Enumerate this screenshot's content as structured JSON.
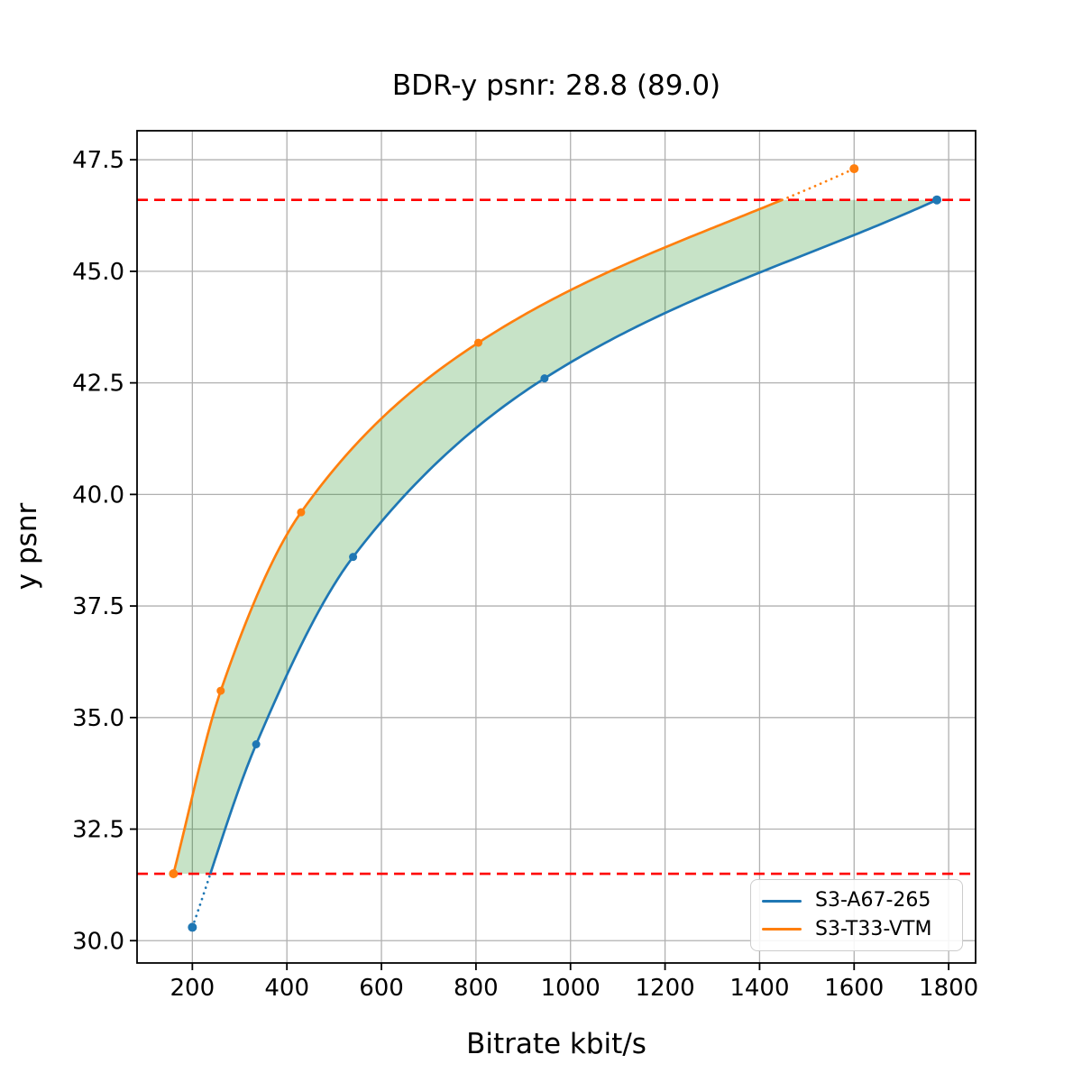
{
  "chart_data": {
    "type": "line",
    "title": "BDR-y psnr: 28.8 (89.0)",
    "xlabel": "Bitrate kbit/s",
    "ylabel": "y psnr",
    "xlim": [
      83,
      1857
    ],
    "ylim": [
      29.5,
      48.15
    ],
    "xticks": [
      200,
      400,
      600,
      800,
      1000,
      1200,
      1400,
      1600,
      1800
    ],
    "xtick_labels": [
      "200",
      "400",
      "600",
      "800",
      "1000",
      "1200",
      "1400",
      "1600",
      "1800"
    ],
    "yticks": [
      30.0,
      32.5,
      35.0,
      37.5,
      40.0,
      42.5,
      45.0,
      47.5
    ],
    "ytick_labels": [
      "30.0",
      "32.5",
      "35.0",
      "37.5",
      "40.0",
      "42.5",
      "45.0",
      "47.5"
    ],
    "grid": true,
    "grid_color": "#b0b0b0",
    "series": [
      {
        "name": "S3-A67-265",
        "color": "#1f77b4",
        "marker": "circle",
        "points": [
          [
            200,
            30.3
          ],
          [
            335,
            34.4
          ],
          [
            540,
            38.6
          ],
          [
            945,
            42.6
          ],
          [
            1775,
            46.6
          ]
        ]
      },
      {
        "name": "S3-T33-VTM",
        "color": "#ff7f0e",
        "marker": "circle",
        "points": [
          [
            160,
            31.5
          ],
          [
            260,
            35.6
          ],
          [
            430,
            39.6
          ],
          [
            805,
            43.4
          ],
          [
            1600,
            47.3
          ]
        ]
      }
    ],
    "overlap_band": {
      "low": 31.5,
      "high": 46.6,
      "line_color": "#ff0000",
      "line_style": "dashed",
      "fill_color": "#008000",
      "fill_opacity": 0.22
    },
    "legend": {
      "position": "lower right"
    }
  }
}
